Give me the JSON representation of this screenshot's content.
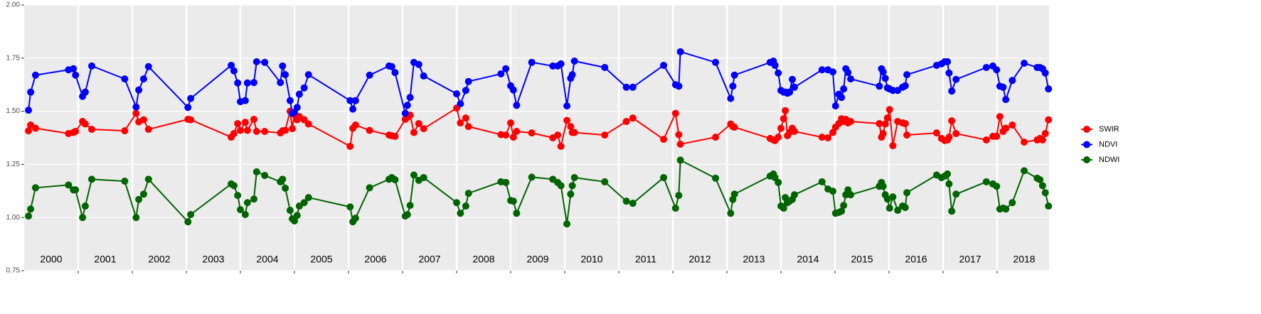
{
  "chart_data": {
    "type": "line",
    "x": [
      2000.08,
      2000.12,
      2000.21,
      2000.82,
      2000.91,
      2000.95,
      2001.08,
      2001.13,
      2001.25,
      2001.86,
      2002.07,
      2002.12,
      2002.21,
      2002.3,
      2003.03,
      2003.08,
      2003.83,
      2003.88,
      2003.95,
      2004.0,
      2004.09,
      2004.13,
      2004.25,
      2004.3,
      2004.45,
      2004.74,
      2004.78,
      2004.83,
      2004.92,
      2004.96,
      2005.0,
      2005.05,
      2005.09,
      2005.18,
      2005.26,
      2006.03,
      2006.08,
      2006.13,
      2006.39,
      2006.75,
      2006.8,
      2006.86,
      2007.05,
      2007.09,
      2007.14,
      2007.21,
      2007.3,
      2007.39,
      2008.0,
      2008.07,
      2008.17,
      2008.22,
      2008.82,
      2008.91,
      2009.0,
      2009.05,
      2009.11,
      2009.39,
      2009.78,
      2009.87,
      2009.93,
      2010.04,
      2010.11,
      2010.14,
      2010.18,
      2010.74,
      2011.14,
      2011.26,
      2011.83,
      2012.05,
      2012.11,
      2012.14,
      2012.79,
      2013.07,
      2013.11,
      2013.14,
      2013.8,
      2013.86,
      2013.89,
      2013.95,
      2014.0,
      2014.05,
      2014.08,
      2014.12,
      2014.16,
      2014.21,
      2014.25,
      2014.76,
      2014.87,
      2014.96,
      2015.01,
      2015.07,
      2015.12,
      2015.16,
      2015.2,
      2015.24,
      2015.29,
      2015.82,
      2015.86,
      2015.89,
      2015.93,
      2015.97,
      2016.01,
      2016.07,
      2016.16,
      2016.25,
      2016.3,
      2016.33,
      2016.88,
      2016.97,
      2017.03,
      2017.08,
      2017.11,
      2017.16,
      2017.24,
      2017.8,
      2017.92,
      2017.99,
      2018.05,
      2018.11,
      2018.16,
      2018.28,
      2018.5,
      2018.74,
      2018.79,
      2018.84,
      2018.89,
      2018.95
    ],
    "series": [
      {
        "name": "SWIR",
        "color": "#ff0000",
        "values": [
          1.408,
          1.435,
          1.42,
          1.395,
          1.4,
          1.405,
          1.452,
          1.44,
          1.415,
          1.408,
          1.49,
          1.45,
          1.46,
          1.415,
          1.462,
          1.46,
          1.378,
          1.395,
          1.442,
          1.41,
          1.448,
          1.41,
          1.462,
          1.405,
          1.405,
          1.398,
          1.408,
          1.41,
          1.5,
          1.418,
          1.484,
          1.46,
          1.475,
          1.46,
          1.44,
          1.335,
          1.42,
          1.435,
          1.41,
          1.388,
          1.385,
          1.382,
          1.462,
          1.472,
          1.482,
          1.4,
          1.442,
          1.418,
          1.515,
          1.445,
          1.468,
          1.428,
          1.39,
          1.388,
          1.445,
          1.378,
          1.405,
          1.398,
          1.375,
          1.388,
          1.335,
          1.457,
          1.428,
          1.4,
          1.4,
          1.388,
          1.452,
          1.468,
          1.368,
          1.49,
          1.39,
          1.345,
          1.378,
          1.44,
          1.428,
          1.425,
          1.372,
          1.365,
          1.362,
          1.378,
          1.42,
          1.465,
          1.503,
          1.385,
          1.4,
          1.42,
          1.405,
          1.378,
          1.375,
          1.4,
          1.425,
          1.442,
          1.465,
          1.452,
          1.462,
          1.445,
          1.452,
          1.442,
          1.378,
          1.395,
          1.44,
          1.468,
          1.508,
          1.338,
          1.452,
          1.445,
          1.442,
          1.388,
          1.398,
          1.372,
          1.362,
          1.365,
          1.378,
          1.455,
          1.395,
          1.365,
          1.382,
          1.382,
          1.475,
          1.405,
          1.42,
          1.435,
          1.355,
          1.365,
          1.372,
          1.365,
          1.395,
          1.46
        ]
      },
      {
        "name": "NDVI",
        "color": "#0000ff",
        "values": [
          1.505,
          1.59,
          1.67,
          1.695,
          1.7,
          1.67,
          1.57,
          1.59,
          1.713,
          1.652,
          1.52,
          1.6,
          1.652,
          1.71,
          1.518,
          1.56,
          1.716,
          1.69,
          1.633,
          1.545,
          1.55,
          1.633,
          1.635,
          1.733,
          1.73,
          1.635,
          1.713,
          1.672,
          1.55,
          1.49,
          1.495,
          1.518,
          1.58,
          1.61,
          1.672,
          1.55,
          1.51,
          1.55,
          1.67,
          1.713,
          1.71,
          1.682,
          1.49,
          1.528,
          1.565,
          1.73,
          1.72,
          1.666,
          1.582,
          1.535,
          1.598,
          1.64,
          1.676,
          1.7,
          1.62,
          1.6,
          1.528,
          1.73,
          1.713,
          1.713,
          1.723,
          1.525,
          1.655,
          1.672,
          1.736,
          1.706,
          1.613,
          1.613,
          1.716,
          1.625,
          1.618,
          1.78,
          1.73,
          1.56,
          1.618,
          1.67,
          1.73,
          1.736,
          1.716,
          1.68,
          1.598,
          1.59,
          1.59,
          1.585,
          1.59,
          1.65,
          1.613,
          1.695,
          1.695,
          1.685,
          1.525,
          1.58,
          1.565,
          1.605,
          1.7,
          1.682,
          1.652,
          1.618,
          1.7,
          1.685,
          1.655,
          1.61,
          1.605,
          1.598,
          1.598,
          1.613,
          1.62,
          1.672,
          1.716,
          1.723,
          1.733,
          1.733,
          1.68,
          1.595,
          1.65,
          1.706,
          1.713,
          1.695,
          1.618,
          1.613,
          1.555,
          1.645,
          1.726,
          1.706,
          1.706,
          1.7,
          1.68,
          1.605
        ]
      },
      {
        "name": "NDWI",
        "color": "#006400",
        "values": [
          1.007,
          1.04,
          1.14,
          1.153,
          1.13,
          1.13,
          1.0,
          1.054,
          1.18,
          1.171,
          1.0,
          1.085,
          1.11,
          1.18,
          0.98,
          1.014,
          1.158,
          1.15,
          1.104,
          1.037,
          1.014,
          1.07,
          1.087,
          1.215,
          1.198,
          1.168,
          1.18,
          1.138,
          1.034,
          0.994,
          0.984,
          1.01,
          1.054,
          1.07,
          1.094,
          1.05,
          0.98,
          0.997,
          1.14,
          1.18,
          1.188,
          1.178,
          1.007,
          1.014,
          1.057,
          1.2,
          1.175,
          1.188,
          1.07,
          1.02,
          1.054,
          1.114,
          1.168,
          1.165,
          1.08,
          1.077,
          1.02,
          1.19,
          1.18,
          1.165,
          1.15,
          0.97,
          1.11,
          1.15,
          1.188,
          1.168,
          1.077,
          1.067,
          1.188,
          1.044,
          1.104,
          1.27,
          1.185,
          1.02,
          1.085,
          1.11,
          1.195,
          1.205,
          1.188,
          1.165,
          1.054,
          1.044,
          1.094,
          1.07,
          1.077,
          1.085,
          1.107,
          1.168,
          1.134,
          1.124,
          1.02,
          1.024,
          1.03,
          1.057,
          1.107,
          1.13,
          1.107,
          1.147,
          1.165,
          1.147,
          1.107,
          1.087,
          1.044,
          1.097,
          1.034,
          1.054,
          1.047,
          1.117,
          1.2,
          1.188,
          1.195,
          1.205,
          1.158,
          1.03,
          1.11,
          1.168,
          1.158,
          1.147,
          1.04,
          1.044,
          1.04,
          1.07,
          1.22,
          1.185,
          1.178,
          1.15,
          1.117,
          1.054
        ]
      }
    ],
    "xlim": [
      2000,
      2018.96
    ],
    "ylim": [
      0.75,
      2.0
    ],
    "yticks": [
      {
        "value": 0.75,
        "label": "0.75"
      },
      {
        "value": 1.0,
        "label": "1.00"
      },
      {
        "value": 1.25,
        "label": "1.25"
      },
      {
        "value": 1.5,
        "label": "1.50"
      },
      {
        "value": 1.75,
        "label": "1.75"
      },
      {
        "value": 2.0,
        "label": "2.00"
      }
    ],
    "xticks": [
      {
        "value": 2000.5,
        "label": "2000"
      },
      {
        "value": 2001.5,
        "label": "2001"
      },
      {
        "value": 2002.5,
        "label": "2002"
      },
      {
        "value": 2003.5,
        "label": "2003"
      },
      {
        "value": 2004.5,
        "label": "2004"
      },
      {
        "value": 2005.5,
        "label": "2005"
      },
      {
        "value": 2006.5,
        "label": "2006"
      },
      {
        "value": 2007.5,
        "label": "2007"
      },
      {
        "value": 2008.5,
        "label": "2008"
      },
      {
        "value": 2009.5,
        "label": "2009"
      },
      {
        "value": 2010.5,
        "label": "2010"
      },
      {
        "value": 2011.5,
        "label": "2011"
      },
      {
        "value": 2012.5,
        "label": "2012"
      },
      {
        "value": 2013.5,
        "label": "2013"
      },
      {
        "value": 2014.5,
        "label": "2014"
      },
      {
        "value": 2015.5,
        "label": "2015"
      },
      {
        "value": 2016.5,
        "label": "2016"
      },
      {
        "value": 2017.5,
        "label": "2017"
      },
      {
        "value": 2018.5,
        "label": "2018"
      }
    ],
    "year_breaks": [
      2001,
      2002,
      2003,
      2004,
      2005,
      2006,
      2007,
      2008,
      2009,
      2010,
      2011,
      2012,
      2013,
      2014,
      2015,
      2016,
      2017,
      2018
    ],
    "grid": true,
    "legend": "right"
  }
}
